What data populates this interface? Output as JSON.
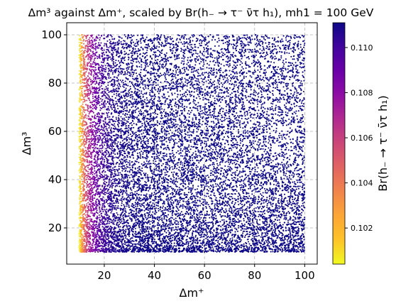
{
  "chart_data": {
    "type": "scatter",
    "title": "Δm³ against Δm⁺, scaled by Br(h₋ → τ⁻ ν̄τ h₁), mh1 = 100 GeV",
    "xlabel": "Δm⁺",
    "ylabel": "Δm³",
    "colorbar_label": "Br(h₋ → τ⁻ ν̄τ h₁)",
    "xlim": [
      5,
      105
    ],
    "ylim": [
      5,
      105
    ],
    "x_range": [
      10,
      100
    ],
    "y_range": [
      10,
      100
    ],
    "xticks": [
      20,
      40,
      60,
      80,
      100
    ],
    "yticks": [
      20,
      40,
      60,
      80,
      100
    ],
    "colorbar_range": [
      0.1004,
      0.1111
    ],
    "colorbar_ticks": [
      "0.102",
      "0.104",
      "0.106",
      "0.108",
      "0.110"
    ],
    "colormap": "plasma",
    "grid": true,
    "n_points": 14000,
    "color_trend": "Br rises with Δm⁺: yellow (~0.1005) at Δm⁺ ≈ 10, orange/magenta at Δm⁺ ≈ 12–20, purple-blue (~0.110) for Δm⁺ > 30"
  },
  "colors": {
    "grid": "#b0b0b0",
    "plasma_low": "#f0f921",
    "plasma_high": "#0d0887"
  }
}
